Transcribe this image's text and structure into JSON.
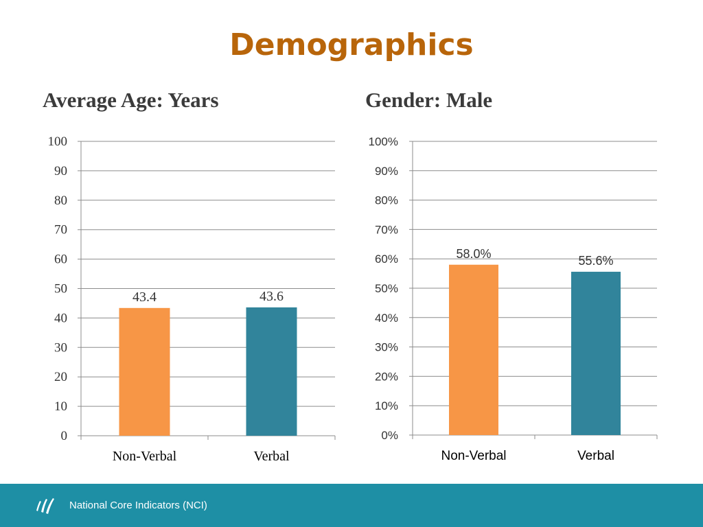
{
  "slide": {
    "title": "Demographics"
  },
  "footer": {
    "text": "National Core Indicators (NCI)"
  },
  "colors": {
    "orange": "#F79646",
    "teal": "#31849B",
    "title": "#B8650A",
    "footer": "#1E8FA5"
  },
  "chart_data": [
    {
      "type": "bar",
      "title": "Average Age: Years",
      "categories": [
        "Non-Verbal",
        "Verbal"
      ],
      "values": [
        43.4,
        43.6
      ],
      "data_labels": [
        "43.4",
        "43.6"
      ],
      "bar_colors": [
        "#F79646",
        "#31849B"
      ],
      "ylim": [
        0,
        100
      ],
      "yticks": [
        0,
        10,
        20,
        30,
        40,
        50,
        60,
        70,
        80,
        90,
        100
      ],
      "ytick_labels": [
        "0",
        "10",
        "20",
        "30",
        "40",
        "50",
        "60",
        "70",
        "80",
        "90",
        "100"
      ],
      "xlabel": "",
      "ylabel": "",
      "grid": true,
      "legend": "none"
    },
    {
      "type": "bar",
      "title": "Gender: Male",
      "categories": [
        "Non-Verbal",
        "Verbal"
      ],
      "values": [
        58.0,
        55.6
      ],
      "data_labels": [
        "58.0%",
        "55.6%"
      ],
      "bar_colors": [
        "#F79646",
        "#31849B"
      ],
      "ylim": [
        0,
        100
      ],
      "yticks": [
        0,
        10,
        20,
        30,
        40,
        50,
        60,
        70,
        80,
        90,
        100
      ],
      "ytick_labels": [
        "0%",
        "10%",
        "20%",
        "30%",
        "40%",
        "50%",
        "60%",
        "70%",
        "80%",
        "90%",
        "100%"
      ],
      "xlabel": "",
      "ylabel": "",
      "grid": true,
      "legend": "none"
    }
  ]
}
